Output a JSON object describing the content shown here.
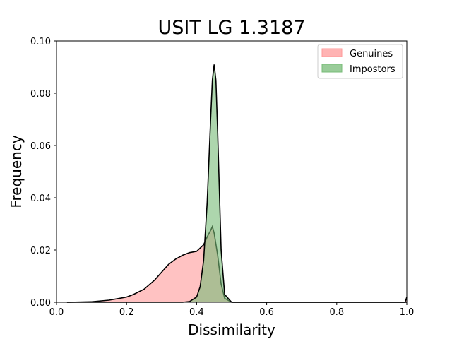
{
  "chart_data": {
    "type": "area",
    "title": "USIT LG 1.3187",
    "xlabel": "Dissimilarity",
    "ylabel": "Frequency",
    "xlim": [
      0.0,
      1.0
    ],
    "ylim": [
      0.0,
      0.1
    ],
    "x_ticks": [
      "0.0",
      "0.2",
      "0.4",
      "0.6",
      "0.8",
      "1.0"
    ],
    "y_ticks": [
      "0.00",
      "0.02",
      "0.04",
      "0.06",
      "0.08",
      "0.10"
    ],
    "legend_position": "top-right",
    "grid": false,
    "series": [
      {
        "name": "Genuines",
        "color": "#ff9999",
        "x": [
          0.03,
          0.1,
          0.15,
          0.18,
          0.2,
          0.22,
          0.25,
          0.28,
          0.3,
          0.32,
          0.34,
          0.36,
          0.38,
          0.4,
          0.42,
          0.43,
          0.44,
          0.445,
          0.45,
          0.46,
          0.47,
          0.48,
          0.5,
          0.6,
          0.8,
          0.995,
          1.0
        ],
        "y": [
          0.0,
          0.0002,
          0.0008,
          0.0015,
          0.002,
          0.003,
          0.005,
          0.0085,
          0.0115,
          0.0145,
          0.0165,
          0.018,
          0.019,
          0.0195,
          0.022,
          0.025,
          0.0275,
          0.029,
          0.0265,
          0.018,
          0.007,
          0.0015,
          0.0,
          0.0,
          0.0,
          0.0,
          0.002
        ]
      },
      {
        "name": "Impostors",
        "color": "#77bb77",
        "x": [
          0.03,
          0.36,
          0.38,
          0.4,
          0.41,
          0.42,
          0.43,
          0.44,
          0.445,
          0.45,
          0.455,
          0.46,
          0.47,
          0.48,
          0.5,
          0.6,
          0.8,
          1.0
        ],
        "y": [
          0.0,
          0.0,
          0.0003,
          0.002,
          0.006,
          0.016,
          0.038,
          0.07,
          0.085,
          0.091,
          0.085,
          0.065,
          0.02,
          0.003,
          0.0,
          0.0,
          0.0,
          0.0
        ]
      }
    ]
  }
}
